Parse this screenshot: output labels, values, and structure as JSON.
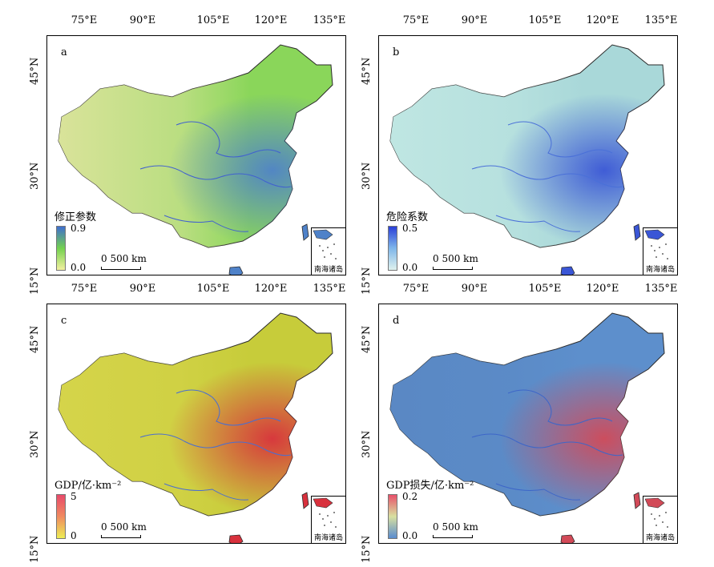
{
  "axis_ticks": {
    "lon": [
      "75°E",
      "90°E",
      "105°E",
      "120°E",
      "135°E"
    ],
    "lat": [
      "45°N",
      "30°N",
      "15°N"
    ]
  },
  "inset_label": "南海诸岛",
  "panels": [
    {
      "letter": "a",
      "legend": {
        "title": "修正参数",
        "max": "0.9",
        "min": "0.0",
        "colors": [
          "#3f6fcf",
          "#73d14f",
          "#f2f0a0"
        ]
      },
      "scale": "0   500 km",
      "colors": {
        "fill": "#8ad65a",
        "west": "#d9e39a",
        "hot": "#4f82c9",
        "river": "#4060d0"
      }
    },
    {
      "letter": "b",
      "legend": {
        "title": "危险系数",
        "max": "0.5",
        "min": "0.0",
        "colors": [
          "#2a3fd8",
          "#7fb6ea",
          "#dff2ee"
        ]
      },
      "scale": "0   500 km",
      "colors": {
        "fill": "#a9d8d9",
        "west": "#bfe6e2",
        "hot": "#3a56d6",
        "river": "#4a70d8"
      }
    },
    {
      "letter": "c",
      "legend": {
        "title": "GDP/亿·km⁻²",
        "max": "5",
        "min": "0",
        "colors": [
          "#e84a6a",
          "#f08a60",
          "#eded55"
        ]
      },
      "scale": "0   500 km",
      "colors": {
        "fill": "#c7cc3a",
        "west": "#d5d44a",
        "hot": "#d8313d",
        "river": "#4a6ed0"
      }
    },
    {
      "letter": "d",
      "legend": {
        "title": "GDP损失/亿·km⁻²",
        "max": "0.2",
        "min": "0.0",
        "colors": [
          "#e8506a",
          "#d8e0a0",
          "#5a8ccf"
        ]
      },
      "scale": "0   500 km",
      "colors": {
        "fill": "#5d8fcc",
        "west": "#5a88c4",
        "hot": "#d24a58",
        "river": "#3d66c8"
      }
    }
  ]
}
